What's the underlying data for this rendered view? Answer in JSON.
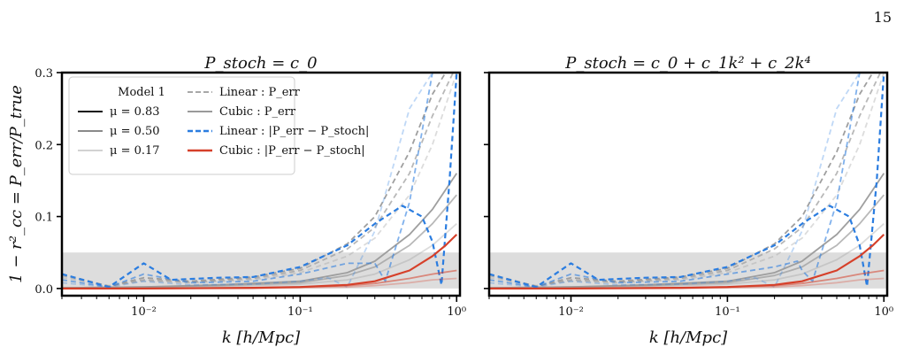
{
  "page_number": "15",
  "colors": {
    "mu_083": "#111111",
    "mu_050": "#8a8a8a",
    "mu_017": "#d2d2d2",
    "linear_err": "#a8a8a8",
    "cubic_err": "#9a9a9a",
    "linear_stoch": "#2b7de0",
    "cubic_stoch": "#d6402a",
    "band": "#d9d9d9"
  },
  "legend": {
    "title": "Model 1",
    "items": [
      {
        "label": "μ = 0.83",
        "style": "solid",
        "color": "#111111"
      },
      {
        "label": "μ = 0.50",
        "style": "solid",
        "color": "#8a8a8a"
      },
      {
        "label": "μ = 0.17",
        "style": "solid",
        "color": "#d2d2d2"
      },
      {
        "label": "Linear : P_err",
        "style": "dashed",
        "color": "#a8a8a8"
      },
      {
        "label": "Cubic : P_err",
        "style": "solid",
        "color": "#9a9a9a"
      },
      {
        "label": "Linear : |P_err − P_stoch|",
        "style": "dashed",
        "color": "#2b7de0"
      },
      {
        "label": "Cubic : |P_err − P_stoch|",
        "style": "solid",
        "color": "#d6402a"
      }
    ]
  },
  "chart_data": [
    {
      "type": "line",
      "title": "P_stoch = c_0",
      "xlabel": "k [h/Mpc]",
      "ylabel": "1 − r²_cc = P_err/P_true",
      "xscale": "log",
      "xlim": [
        0.003,
        1.05
      ],
      "ylim": [
        -0.01,
        0.3
      ],
      "xticks": [
        {
          "v": 0.01,
          "label": "10⁻²"
        },
        {
          "v": 0.1,
          "label": "10⁻¹"
        },
        {
          "v": 1,
          "label": "10⁰"
        }
      ],
      "yticks": [
        {
          "v": 0.0,
          "label": "0.0"
        },
        {
          "v": 0.1,
          "label": "0.1"
        },
        {
          "v": 0.2,
          "label": "0.2"
        },
        {
          "v": 0.3,
          "label": "0.3"
        }
      ],
      "band": [
        0,
        0.05
      ],
      "series": [
        {
          "mu": "0.17",
          "model": "Linear",
          "quantity": "P_err",
          "x": [
            0.003,
            0.006,
            0.01,
            0.02,
            0.05,
            0.1,
            0.2,
            0.3,
            0.5,
            0.7,
            1.0
          ],
          "values": [
            0.015,
            0.004,
            0.01,
            0.008,
            0.012,
            0.022,
            0.045,
            0.07,
            0.13,
            0.2,
            0.3
          ]
        },
        {
          "mu": "0.50",
          "model": "Linear",
          "quantity": "P_err",
          "x": [
            0.003,
            0.006,
            0.01,
            0.02,
            0.05,
            0.1,
            0.2,
            0.3,
            0.5,
            0.7,
            0.95
          ],
          "values": [
            0.018,
            0.003,
            0.012,
            0.009,
            0.014,
            0.025,
            0.055,
            0.085,
            0.16,
            0.24,
            0.3
          ]
        },
        {
          "mu": "0.83",
          "model": "Linear",
          "quantity": "P_err",
          "x": [
            0.003,
            0.006,
            0.01,
            0.02,
            0.05,
            0.1,
            0.2,
            0.3,
            0.5,
            0.7,
            0.85
          ],
          "values": [
            0.02,
            0.003,
            0.015,
            0.01,
            0.016,
            0.028,
            0.062,
            0.1,
            0.19,
            0.27,
            0.3
          ]
        },
        {
          "mu": "0.17",
          "model": "Cubic",
          "quantity": "P_err",
          "x": [
            0.003,
            0.01,
            0.03,
            0.1,
            0.2,
            0.3,
            0.5,
            0.7,
            1.0
          ],
          "values": [
            0.001,
            0.002,
            0.003,
            0.006,
            0.012,
            0.02,
            0.04,
            0.06,
            0.09
          ]
        },
        {
          "mu": "0.50",
          "model": "Cubic",
          "quantity": "P_err",
          "x": [
            0.003,
            0.01,
            0.03,
            0.1,
            0.2,
            0.3,
            0.5,
            0.7,
            1.0
          ],
          "values": [
            0.001,
            0.002,
            0.004,
            0.008,
            0.018,
            0.03,
            0.06,
            0.09,
            0.13
          ]
        },
        {
          "mu": "0.83",
          "model": "Cubic",
          "quantity": "P_err",
          "x": [
            0.003,
            0.01,
            0.03,
            0.1,
            0.2,
            0.3,
            0.5,
            0.7,
            1.0
          ],
          "values": [
            0.001,
            0.002,
            0.005,
            0.01,
            0.022,
            0.038,
            0.075,
            0.11,
            0.16
          ]
        },
        {
          "mu": "0.83",
          "model": "Linear",
          "quantity": "|P_err − P_stoch|",
          "x": [
            0.003,
            0.006,
            0.01,
            0.015,
            0.03,
            0.05,
            0.1,
            0.2,
            0.3,
            0.45,
            0.6,
            0.7,
            0.8,
            0.9,
            1.0
          ],
          "values": [
            0.02,
            0.002,
            0.035,
            0.012,
            0.015,
            0.016,
            0.03,
            0.06,
            0.09,
            0.115,
            0.1,
            0.065,
            0.005,
            0.15,
            0.3
          ]
        },
        {
          "mu": "0.50",
          "model": "Linear",
          "quantity": "|P_err − P_stoch|",
          "x": [
            0.003,
            0.006,
            0.01,
            0.02,
            0.05,
            0.1,
            0.2,
            0.3,
            0.35,
            0.5,
            0.7,
            1.0
          ],
          "values": [
            0.012,
            0.002,
            0.02,
            0.008,
            0.01,
            0.02,
            0.035,
            0.035,
            0.01,
            0.12,
            0.3,
            0.3
          ]
        },
        {
          "mu": "0.17",
          "model": "Linear",
          "quantity": "|P_err − P_stoch|",
          "x": [
            0.003,
            0.006,
            0.01,
            0.02,
            0.05,
            0.1,
            0.15,
            0.2,
            0.3,
            0.5,
            0.7
          ],
          "values": [
            0.008,
            0.002,
            0.01,
            0.005,
            0.006,
            0.01,
            0.015,
            0.002,
            0.08,
            0.25,
            0.3
          ]
        },
        {
          "mu": "0.83",
          "model": "Cubic",
          "quantity": "|P_err − P_stoch|",
          "x": [
            0.003,
            0.01,
            0.05,
            0.1,
            0.2,
            0.3,
            0.5,
            0.7,
            0.85,
            1.0
          ],
          "values": [
            0.0,
            0.0,
            0.001,
            0.002,
            0.005,
            0.01,
            0.025,
            0.045,
            0.06,
            0.075
          ]
        },
        {
          "mu": "0.50",
          "model": "Cubic",
          "quantity": "|P_err − P_stoch|",
          "x": [
            0.003,
            0.01,
            0.05,
            0.1,
            0.2,
            0.3,
            0.5,
            0.7,
            1.0
          ],
          "values": [
            0.0,
            0.0,
            0.001,
            0.002,
            0.004,
            0.007,
            0.014,
            0.02,
            0.025
          ]
        },
        {
          "mu": "0.17",
          "model": "Cubic",
          "quantity": "|P_err − P_stoch|",
          "x": [
            0.003,
            0.01,
            0.05,
            0.1,
            0.2,
            0.3,
            0.5,
            0.7,
            1.0
          ],
          "values": [
            0.0,
            0.0,
            0.0,
            0.001,
            0.002,
            0.004,
            0.008,
            0.012,
            0.014
          ]
        }
      ]
    },
    {
      "type": "line",
      "title": "P_stoch = c_0 + c_1k² + c_2k⁴",
      "xlabel": "k [h/Mpc]",
      "ylabel": "",
      "xscale": "log",
      "xlim": [
        0.003,
        1.05
      ],
      "ylim": [
        -0.01,
        0.3
      ],
      "xticks": [
        {
          "v": 0.01,
          "label": "10⁻²"
        },
        {
          "v": 0.1,
          "label": "10⁻¹"
        },
        {
          "v": 1,
          "label": "10⁰"
        }
      ],
      "yticks": [],
      "band": [
        0,
        0.05
      ],
      "series": [
        {
          "mu": "0.17",
          "model": "Linear",
          "quantity": "P_err",
          "x": [
            0.003,
            0.006,
            0.01,
            0.02,
            0.05,
            0.1,
            0.2,
            0.3,
            0.5,
            0.7,
            1.0
          ],
          "values": [
            0.015,
            0.004,
            0.01,
            0.008,
            0.012,
            0.022,
            0.045,
            0.07,
            0.13,
            0.2,
            0.3
          ]
        },
        {
          "mu": "0.50",
          "model": "Linear",
          "quantity": "P_err",
          "x": [
            0.003,
            0.006,
            0.01,
            0.02,
            0.05,
            0.1,
            0.2,
            0.3,
            0.5,
            0.7,
            0.95
          ],
          "values": [
            0.018,
            0.003,
            0.012,
            0.009,
            0.014,
            0.025,
            0.055,
            0.085,
            0.16,
            0.24,
            0.3
          ]
        },
        {
          "mu": "0.83",
          "model": "Linear",
          "quantity": "P_err",
          "x": [
            0.003,
            0.006,
            0.01,
            0.02,
            0.05,
            0.1,
            0.2,
            0.3,
            0.5,
            0.7,
            0.85
          ],
          "values": [
            0.02,
            0.003,
            0.015,
            0.01,
            0.016,
            0.028,
            0.062,
            0.1,
            0.19,
            0.27,
            0.3
          ]
        },
        {
          "mu": "0.17",
          "model": "Cubic",
          "quantity": "P_err",
          "x": [
            0.003,
            0.01,
            0.03,
            0.1,
            0.2,
            0.3,
            0.5,
            0.7,
            1.0
          ],
          "values": [
            0.001,
            0.002,
            0.003,
            0.006,
            0.012,
            0.02,
            0.04,
            0.06,
            0.09
          ]
        },
        {
          "mu": "0.50",
          "model": "Cubic",
          "quantity": "P_err",
          "x": [
            0.003,
            0.01,
            0.03,
            0.1,
            0.2,
            0.3,
            0.5,
            0.7,
            1.0
          ],
          "values": [
            0.001,
            0.002,
            0.004,
            0.008,
            0.018,
            0.03,
            0.06,
            0.09,
            0.13
          ]
        },
        {
          "mu": "0.83",
          "model": "Cubic",
          "quantity": "P_err",
          "x": [
            0.003,
            0.01,
            0.03,
            0.1,
            0.2,
            0.3,
            0.5,
            0.7,
            1.0
          ],
          "values": [
            0.001,
            0.002,
            0.005,
            0.01,
            0.022,
            0.038,
            0.075,
            0.11,
            0.16
          ]
        },
        {
          "mu": "0.83",
          "model": "Linear",
          "quantity": "|P_err − P_stoch|",
          "x": [
            0.003,
            0.006,
            0.01,
            0.015,
            0.03,
            0.05,
            0.1,
            0.2,
            0.3,
            0.45,
            0.6,
            0.7,
            0.78,
            0.9,
            1.0
          ],
          "values": [
            0.02,
            0.002,
            0.035,
            0.012,
            0.015,
            0.016,
            0.03,
            0.06,
            0.09,
            0.115,
            0.1,
            0.06,
            0.003,
            0.15,
            0.3
          ]
        },
        {
          "mu": "0.50",
          "model": "Linear",
          "quantity": "|P_err − P_stoch|",
          "x": [
            0.003,
            0.006,
            0.01,
            0.02,
            0.05,
            0.1,
            0.2,
            0.28,
            0.3,
            0.35,
            0.5,
            0.7,
            1.0
          ],
          "values": [
            0.012,
            0.002,
            0.02,
            0.008,
            0.01,
            0.02,
            0.03,
            0.038,
            0.025,
            0.01,
            0.12,
            0.3,
            0.3
          ]
        },
        {
          "mu": "0.17",
          "model": "Linear",
          "quantity": "|P_err − P_stoch|",
          "x": [
            0.003,
            0.006,
            0.01,
            0.02,
            0.05,
            0.1,
            0.15,
            0.2,
            0.3,
            0.5,
            0.7
          ],
          "values": [
            0.008,
            0.002,
            0.01,
            0.005,
            0.006,
            0.01,
            0.015,
            0.002,
            0.08,
            0.25,
            0.3
          ]
        },
        {
          "mu": "0.83",
          "model": "Cubic",
          "quantity": "|P_err − P_stoch|",
          "x": [
            0.003,
            0.01,
            0.05,
            0.1,
            0.2,
            0.3,
            0.5,
            0.7,
            0.85,
            1.0
          ],
          "values": [
            0.0,
            0.0,
            0.001,
            0.002,
            0.005,
            0.01,
            0.025,
            0.045,
            0.06,
            0.075
          ]
        },
        {
          "mu": "0.50",
          "model": "Cubic",
          "quantity": "|P_err − P_stoch|",
          "x": [
            0.003,
            0.01,
            0.05,
            0.1,
            0.2,
            0.3,
            0.5,
            0.7,
            1.0
          ],
          "values": [
            0.0,
            0.0,
            0.001,
            0.002,
            0.004,
            0.007,
            0.014,
            0.02,
            0.025
          ]
        },
        {
          "mu": "0.17",
          "model": "Cubic",
          "quantity": "|P_err − P_stoch|",
          "x": [
            0.003,
            0.01,
            0.05,
            0.1,
            0.2,
            0.3,
            0.5,
            0.7,
            1.0
          ],
          "values": [
            0.0,
            0.0,
            0.0,
            0.001,
            0.002,
            0.004,
            0.008,
            0.012,
            0.014
          ]
        }
      ]
    }
  ]
}
